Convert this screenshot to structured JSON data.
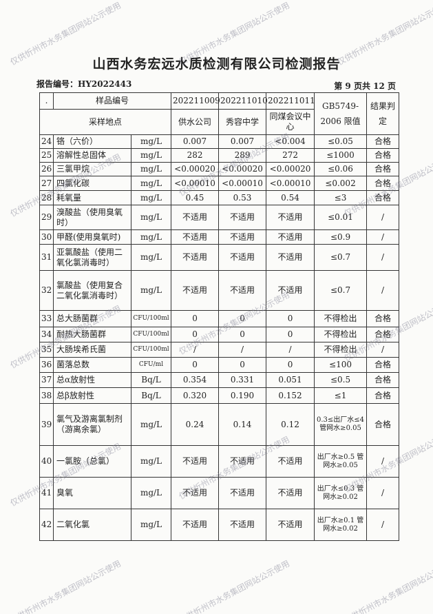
{
  "title": "山西水务宏远水质检测有限公司检测报告",
  "report_no": "报告编号：HY2022443",
  "page_info": "第 9 页共 12 页",
  "watermark": "仅供忻州市水务集团网站公示使用",
  "header": {
    "dot": ".",
    "sample_no_label": "样品编号",
    "site_label": "采样地点",
    "samples": [
      "202211009",
      "202211010",
      "202211011"
    ],
    "sites": [
      "供水公司",
      "秀容中学",
      "同煤会议中心"
    ],
    "limit_label": "GB5749-2006 限值",
    "result_label": "结果判定"
  },
  "rows": [
    {
      "no": "24",
      "name": "铬（六价）",
      "unit": "mg/L",
      "v1": "0.007",
      "v2": "0.007",
      "v3": "<0.004",
      "limit": "≤0.05",
      "result": "合格"
    },
    {
      "no": "25",
      "name": "溶解性总固体",
      "unit": "mg/L",
      "v1": "282",
      "v2": "289",
      "v3": "272",
      "limit": "≤1000",
      "result": "合格"
    },
    {
      "no": "26",
      "name": "三氯甲烷",
      "unit": "mg/L",
      "v1": "<0.00020",
      "v2": "<0.00020",
      "v3": "<0.00020",
      "limit": "≤0.06",
      "result": "合格"
    },
    {
      "no": "27",
      "name": "四氯化碳",
      "unit": "mg/L",
      "v1": "<0.00010",
      "v2": "<0.00010",
      "v3": "<0.00010",
      "limit": "≤0.002",
      "result": "合格"
    },
    {
      "no": "28",
      "name": "耗氧量",
      "unit": "mg/L",
      "v1": "0.45",
      "v2": "0.53",
      "v3": "0.54",
      "limit": "≤3",
      "result": "合格"
    },
    {
      "no": "29",
      "name": "溴酸盐（使用臭氧时）",
      "unit": "mg/L",
      "v1": "不适用",
      "v2": "不适用",
      "v3": "不适用",
      "limit": "≤0.01",
      "result": "/"
    },
    {
      "no": "30",
      "name": "甲醛(使用臭氧时)",
      "unit": "mg/L",
      "v1": "不适用",
      "v2": "不适用",
      "v3": "不适用",
      "limit": "≤0.9",
      "result": "/"
    },
    {
      "no": "31",
      "name": "亚氯酸盐（使用二氧化氯消毒时）",
      "unit": "mg/L",
      "v1": "不适用",
      "v2": "不适用",
      "v3": "不适用",
      "limit": "≤0.7",
      "result": "/"
    },
    {
      "no": "32",
      "name": "氯酸盐（使用复合二氧化氯消毒时）",
      "unit": "mg/L",
      "v1": "不适用",
      "v2": "不适用",
      "v3": "不适用",
      "limit": "≤0.7",
      "result": "/"
    },
    {
      "no": "33",
      "name": "总大肠菌群",
      "unit": "CFU/100ml",
      "v1": "0",
      "v2": "0",
      "v3": "0",
      "limit": "不得检出",
      "result": "合格"
    },
    {
      "no": "34",
      "name": "耐热大肠菌群",
      "unit": "CFU/100ml",
      "v1": "0",
      "v2": "0",
      "v3": "0",
      "limit": "不得检出",
      "result": "合格"
    },
    {
      "no": "35",
      "name": "大肠埃希氏菌",
      "unit": "CFU/100ml",
      "v1": "/",
      "v2": "/",
      "v3": "/",
      "limit": "不得检出",
      "result": "/"
    },
    {
      "no": "36",
      "name": "菌落总数",
      "unit": "CFU/ml",
      "v1": "0",
      "v2": "0",
      "v3": "0",
      "limit": "≤100",
      "result": "合格"
    },
    {
      "no": "37",
      "name": "总α放射性",
      "unit": "Bq/L",
      "v1": "0.354",
      "v2": "0.331",
      "v3": "0.051",
      "limit": "≤0.5",
      "result": "合格"
    },
    {
      "no": "38",
      "name": "总β放射性",
      "unit": "Bq/L",
      "v1": "0.320",
      "v2": "0.190",
      "v3": "0.152",
      "limit": "≤1",
      "result": "合格"
    },
    {
      "no": "39",
      "name": "氯气及游离氯制剂（游离余氯）",
      "unit": "mg/L",
      "v1": "0.24",
      "v2": "0.14",
      "v3": "0.12",
      "limit": "0.3≤出厂水≤4 管网水≥0.05",
      "result": "合格"
    },
    {
      "no": "40",
      "name": "一氯胺（总氯）",
      "unit": "mg/L",
      "v1": "不适用",
      "v2": "不适用",
      "v3": "不适用",
      "limit": "出厂水≥0.5 管网水≥0.05",
      "result": "/"
    },
    {
      "no": "41",
      "name": "臭氧",
      "unit": "mg/L",
      "v1": "不适用",
      "v2": "不适用",
      "v3": "不适用",
      "limit": "出厂水≤0.3 管网水≥0.02",
      "result": "/"
    },
    {
      "no": "42",
      "name": "二氧化氯",
      "unit": "mg/L",
      "v1": "不适用",
      "v2": "不适用",
      "v3": "不适用",
      "limit": "出厂水≥0.1 管网水≥0.02",
      "result": "/"
    }
  ]
}
